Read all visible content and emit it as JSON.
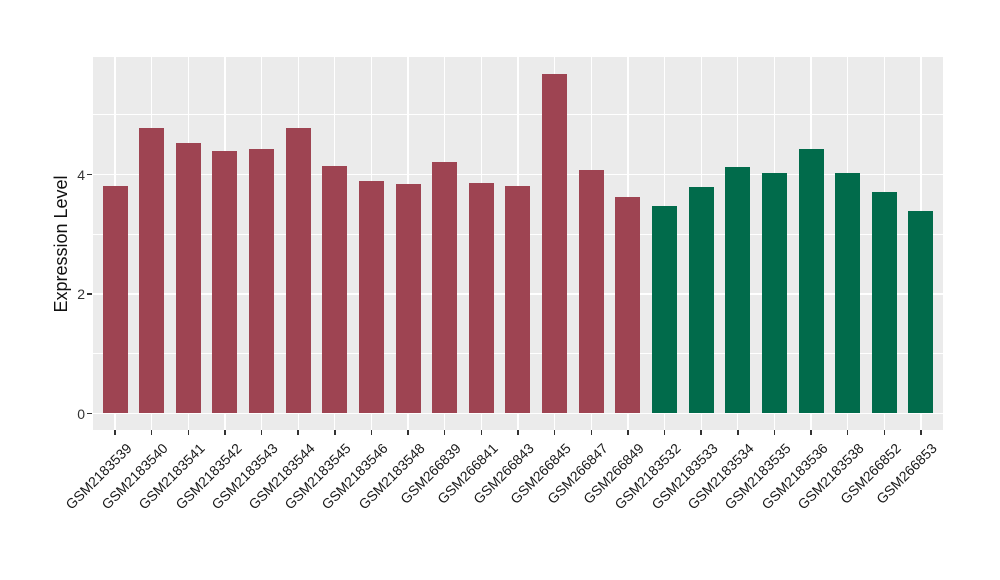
{
  "figure": {
    "background_color": "#ffffff",
    "panel_background_color": "#ebebeb",
    "gridline_color": "#ffffff",
    "axis_text_color": "#333333",
    "label_text_color": "#1a1a1a"
  },
  "chart_data": {
    "type": "bar",
    "title": "",
    "xlabel": "",
    "ylabel": "Expression Level",
    "ylim": [
      -0.29,
      5.97
    ],
    "yticks": [
      0,
      2,
      4
    ],
    "yminor": [
      1,
      3,
      5
    ],
    "grid": "on",
    "legend_position": "none",
    "x_tick_rotation_deg": 45,
    "categories": [
      "GSM2183539",
      "GSM2183540",
      "GSM2183541",
      "GSM2183542",
      "GSM2183543",
      "GSM2183544",
      "GSM2183545",
      "GSM2183546",
      "GSM2183548",
      "GSM266839",
      "GSM266841",
      "GSM266843",
      "GSM266845",
      "GSM266847",
      "GSM266849",
      "GSM2183532",
      "GSM2183533",
      "GSM2183534",
      "GSM2183535",
      "GSM2183536",
      "GSM2183538",
      "GSM266852",
      "GSM266853"
    ],
    "values": [
      3.81,
      4.78,
      4.53,
      4.4,
      4.43,
      4.77,
      4.15,
      3.89,
      3.84,
      4.21,
      3.85,
      3.8,
      5.69,
      4.07,
      3.62,
      3.47,
      3.79,
      4.13,
      4.03,
      4.43,
      4.03,
      3.7,
      3.39
    ],
    "groups": [
      "group1",
      "group1",
      "group1",
      "group1",
      "group1",
      "group1",
      "group1",
      "group1",
      "group1",
      "group1",
      "group1",
      "group1",
      "group1",
      "group1",
      "group1",
      "group2",
      "group2",
      "group2",
      "group2",
      "group2",
      "group2",
      "group2",
      "group2"
    ],
    "group_colors": {
      "group1": "#9e4452",
      "group2": "#016b4b"
    }
  }
}
